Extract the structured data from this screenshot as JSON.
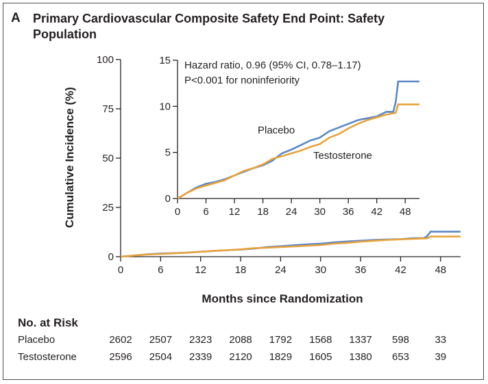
{
  "panel": {
    "letter": "A",
    "title": "Primary Cardiovascular Composite Safety End Point: Safety Population"
  },
  "chart_data": [
    {
      "type": "line",
      "role": "main",
      "xlabel": "Months since Randomization",
      "ylabel": "Cumulative Incidence (%)",
      "xlim": [
        0,
        51
      ],
      "ylim": [
        0,
        100
      ],
      "xticks": [
        0,
        6,
        12,
        18,
        24,
        30,
        36,
        42,
        48
      ],
      "yticks": [
        0,
        25,
        50,
        75,
        100
      ],
      "colors": {
        "Placebo": "#5b86c6",
        "Testosterone": "#e8a23a"
      },
      "series": [
        {
          "name": "Placebo",
          "x": [
            0,
            2,
            4,
            6,
            8,
            10,
            12,
            14,
            16,
            18,
            20,
            22,
            24,
            26,
            28,
            30,
            32,
            34,
            36,
            38,
            40,
            42,
            44,
            45.5,
            46,
            46.5,
            51
          ],
          "y": [
            0,
            0.6,
            1.2,
            1.6,
            1.8,
            2.1,
            2.5,
            2.9,
            3.3,
            3.6,
            4.1,
            4.9,
            5.3,
            5.8,
            6.3,
            6.6,
            7.3,
            7.7,
            8.1,
            8.5,
            8.7,
            8.9,
            9.4,
            9.4,
            10.5,
            12.7,
            12.7
          ]
        },
        {
          "name": "Testosterone",
          "x": [
            0,
            2,
            4,
            6,
            8,
            10,
            12,
            14,
            16,
            18,
            20,
            22,
            24,
            26,
            28,
            30,
            32,
            34,
            36,
            38,
            40,
            42,
            44,
            46,
            46.5,
            51
          ],
          "y": [
            0,
            0.6,
            1.1,
            1.4,
            1.7,
            2.0,
            2.5,
            3.0,
            3.3,
            3.7,
            4.3,
            4.6,
            4.9,
            5.2,
            5.6,
            5.9,
            6.6,
            7.0,
            7.6,
            8.1,
            8.5,
            8.8,
            9.1,
            9.3,
            10.2,
            10.2
          ]
        }
      ]
    },
    {
      "type": "line",
      "role": "inset",
      "xlim": [
        0,
        51
      ],
      "ylim": [
        0,
        15
      ],
      "xticks": [
        0,
        6,
        12,
        18,
        24,
        30,
        36,
        42,
        48
      ],
      "yticks": [
        0,
        5,
        10,
        15
      ],
      "annotations": [
        "Hazard ratio, 0.96 (95% CI, 0.78–1.17)",
        "P<0.001 for noninferiority"
      ],
      "series_labels": [
        "Placebo",
        "Testosterone"
      ],
      "series_ref": "main"
    }
  ],
  "risk_table": {
    "heading": "No. at Risk",
    "months": [
      0,
      6,
      12,
      18,
      24,
      30,
      36,
      42,
      48
    ],
    "rows": [
      {
        "label": "Placebo",
        "values": [
          "2602",
          "2507",
          "2323",
          "2088",
          "1792",
          "1568",
          "1337",
          "598",
          "33"
        ]
      },
      {
        "label": "Testosterone",
        "values": [
          "2596",
          "2504",
          "2339",
          "2120",
          "1829",
          "1605",
          "1380",
          "653",
          "39"
        ]
      }
    ]
  }
}
